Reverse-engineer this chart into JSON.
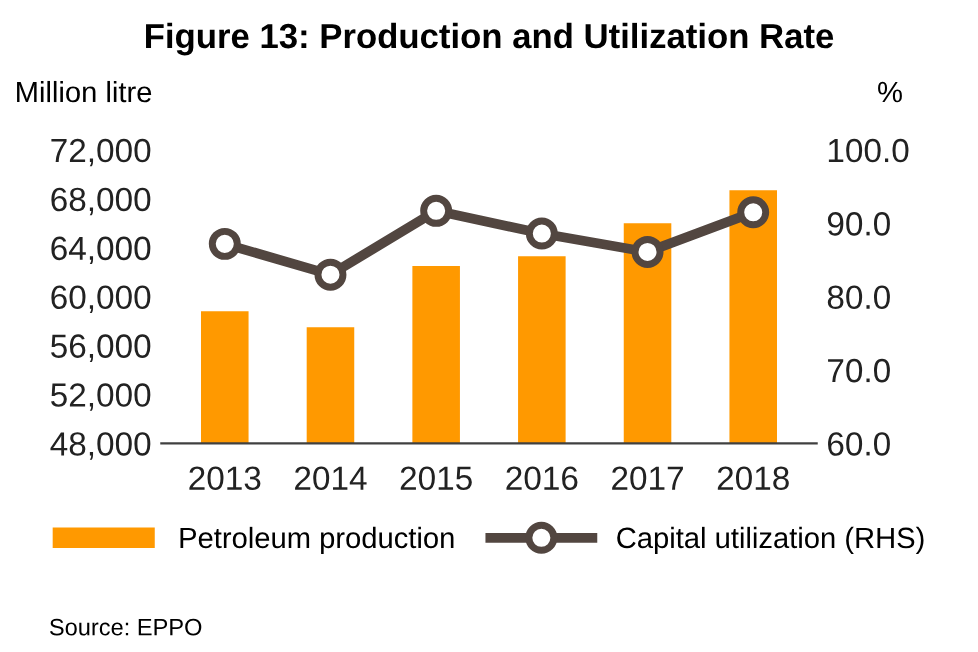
{
  "chart_data": {
    "type": "bar",
    "title": "Figure 13: Production and Utilization Rate",
    "ylabel": "Million litre",
    "y2label": "%",
    "categories": [
      "2013",
      "2014",
      "2015",
      "2016",
      "2017",
      "2018"
    ],
    "series": [
      {
        "name": "Petroleum production",
        "color": "#ff9900",
        "values": [
          58800,
          57500,
          62500,
          63300,
          66000,
          68700
        ]
      },
      {
        "name": "Capital utilization (RHS)",
        "type": "line",
        "axis": "y2",
        "color": "#524640",
        "marker": "circle",
        "values": [
          87.2,
          83.0,
          91.7,
          88.6,
          86.1,
          91.5
        ]
      }
    ],
    "ylim": [
      48000,
      72000
    ],
    "yticks": [
      {
        "value": 48000,
        "label": "48,000"
      },
      {
        "value": 52000,
        "label": "52,000"
      },
      {
        "value": 56000,
        "label": "56,000"
      },
      {
        "value": 60000,
        "label": "60,000"
      },
      {
        "value": 64000,
        "label": "64,000"
      },
      {
        "value": 68000,
        "label": "68,000"
      },
      {
        "value": 72000,
        "label": "72,000"
      }
    ],
    "y2lim": [
      60,
      100
    ],
    "y2ticks": [
      {
        "value": 60,
        "label": "60.0"
      },
      {
        "value": 70,
        "label": "70.0"
      },
      {
        "value": 80,
        "label": "80.0"
      },
      {
        "value": 90,
        "label": "90.0"
      },
      {
        "value": 100,
        "label": "100.0"
      }
    ],
    "legend": "bottom",
    "grid": false,
    "annotations": [
      "Source: EPPO"
    ]
  }
}
